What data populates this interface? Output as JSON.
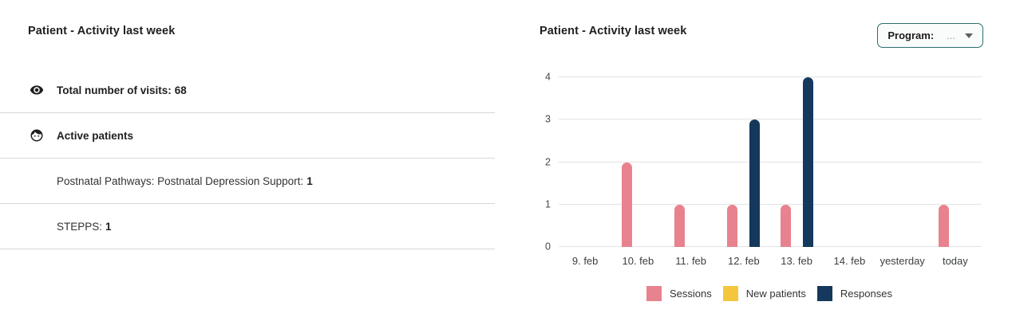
{
  "left_panel": {
    "title": "Patient - Activity last week",
    "rows": [
      {
        "icon": "eye-icon",
        "label": "Total number of visits:",
        "value": "68"
      },
      {
        "icon": "face-icon",
        "label": "Active patients",
        "value": ""
      },
      {
        "icon": "",
        "label": "Postnatal Pathways: Postnatal Depression Support:",
        "value": "1"
      },
      {
        "icon": "",
        "label": "STEPPS:",
        "value": "1"
      }
    ]
  },
  "right_panel": {
    "title": "Patient - Activity last week",
    "program_filter": {
      "label": "Program:",
      "value": "...",
      "border_color": "#2a6f6f"
    }
  },
  "chart_data": {
    "type": "bar",
    "title": "Patient - Activity last week",
    "categories": [
      "9. feb",
      "10. feb",
      "11. feb",
      "12. feb",
      "13. feb",
      "14. feb",
      "yesterday",
      "today"
    ],
    "series": [
      {
        "name": "Sessions",
        "color": "#e8828e",
        "values": [
          0,
          2,
          1,
          1,
          1,
          0,
          0,
          1
        ]
      },
      {
        "name": "New patients",
        "color": "#f4c63d",
        "values": [
          0,
          0,
          0,
          0,
          0,
          0,
          0,
          0
        ]
      },
      {
        "name": "Responses",
        "color": "#14395c",
        "values": [
          0,
          0,
          0,
          3,
          4,
          0,
          0,
          0
        ]
      }
    ],
    "xlabel": "",
    "ylabel": "",
    "ylim": [
      0,
      4
    ],
    "yticks": [
      0,
      1,
      2,
      3,
      4
    ],
    "grid": true,
    "legend_position": "bottom"
  }
}
